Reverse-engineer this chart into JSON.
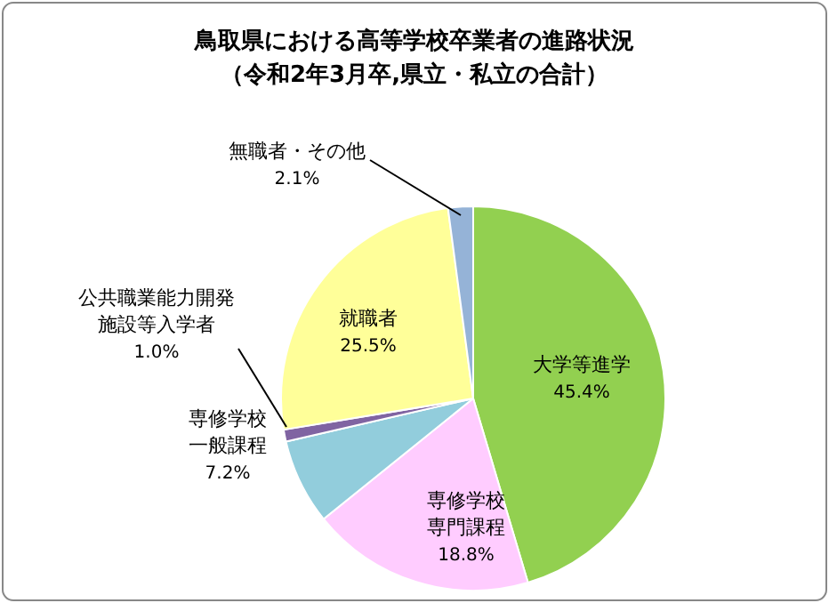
{
  "chart_data": {
    "type": "pie",
    "title": "鳥取県における高等学校卒業者の進路状況",
    "subtitle": "（令和2年3月卒,県立・私立の合計）",
    "categories": [
      "大学等進学",
      "専修学校専門課程",
      "専修学校一般課程",
      "公共職業能力開発施設等入学者",
      "就職者",
      "無職者・その他"
    ],
    "values": [
      45.4,
      18.8,
      7.2,
      1.0,
      25.5,
      2.1
    ],
    "colors": [
      "#92d050",
      "#ffccff",
      "#92cddc",
      "#8064a2",
      "#ffff99",
      "#95b3d7"
    ],
    "value_labels": [
      "45.4%",
      "18.8%",
      "7.2%",
      "1.0%",
      "25.5%",
      "2.1%"
    ]
  }
}
